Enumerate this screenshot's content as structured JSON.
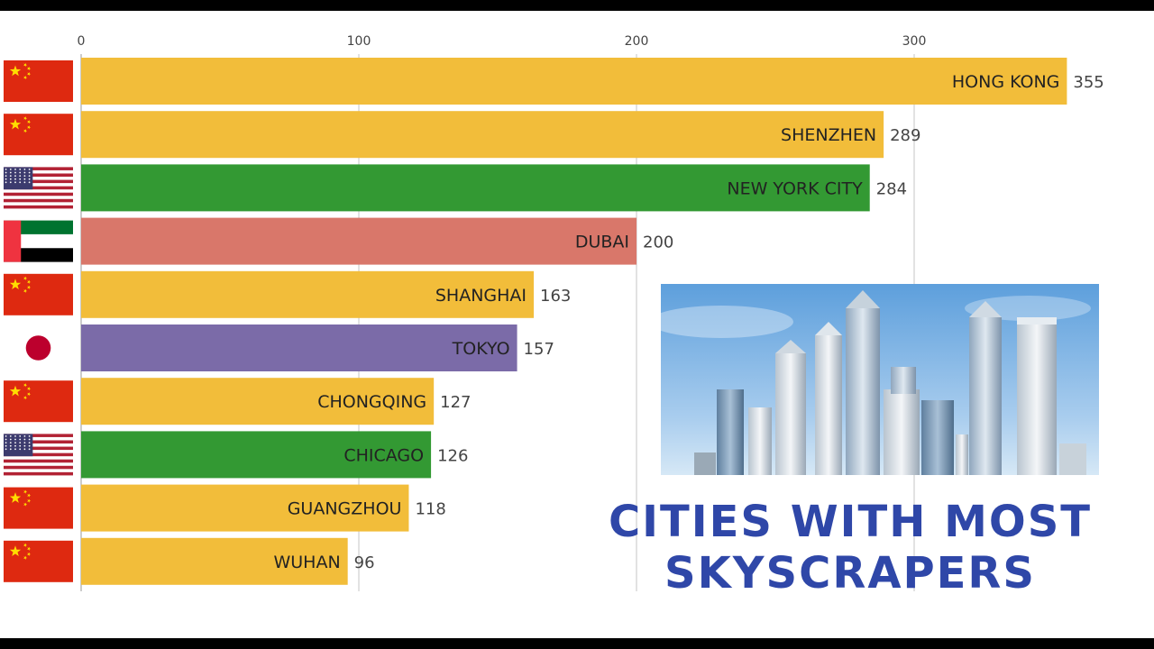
{
  "chart_data": {
    "type": "bar",
    "orientation": "horizontal",
    "title": "CITIES WITH MOST SKYSCRAPERS",
    "xlim": [
      0,
      360
    ],
    "xticks": [
      0,
      100,
      200,
      300
    ],
    "grid": true,
    "categories": [
      "HONG KONG",
      "SHENZHEN",
      "NEW YORK CITY",
      "DUBAI",
      "SHANGHAI",
      "TOKYO",
      "CHONGQING",
      "CHICAGO",
      "GUANGZHOU",
      "WUHAN"
    ],
    "values": [
      355,
      289,
      284,
      200,
      163,
      157,
      127,
      126,
      118,
      96
    ],
    "countries": [
      "china",
      "china",
      "usa",
      "uae",
      "china",
      "japan",
      "china",
      "usa",
      "china",
      "china"
    ],
    "colors": {
      "china": "#f2bd3a",
      "usa": "#339933",
      "uae": "#d9776a",
      "japan": "#7b6ba8"
    }
  },
  "photo": {
    "subject": "city skyline with skyscrapers"
  }
}
